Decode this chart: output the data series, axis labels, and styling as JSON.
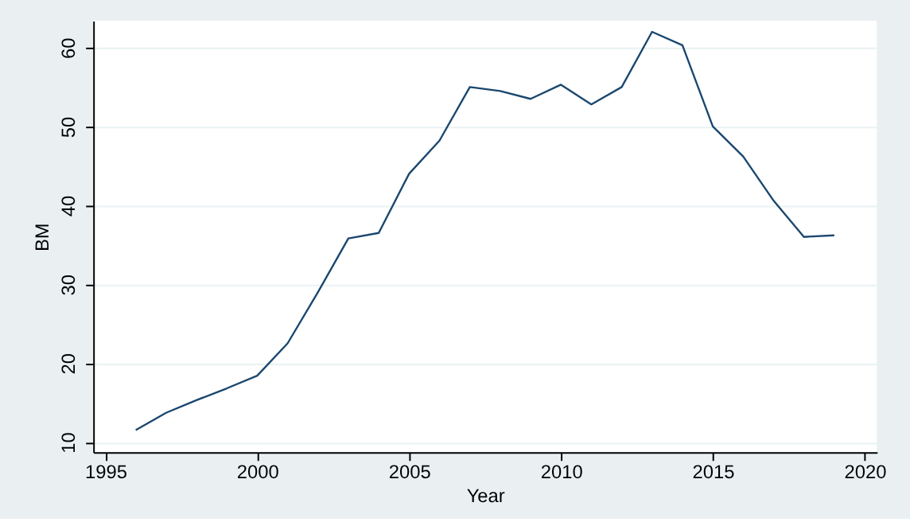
{
  "chart_data": {
    "type": "line",
    "xlabel": "Year",
    "ylabel": "BM",
    "x": [
      1996,
      1997,
      1998,
      1999,
      2000,
      2001,
      2002,
      2003,
      2004,
      2005,
      2006,
      2007,
      2008,
      2009,
      2010,
      2011,
      2012,
      2013,
      2014,
      2015,
      2016,
      2017,
      2018,
      2019
    ],
    "series": [
      {
        "color": "#1a476f",
        "values": [
          11.5,
          13.7,
          15.3,
          16.8,
          18.4,
          22.5,
          29,
          35.8,
          36.5,
          44,
          48.2,
          55,
          54.5,
          53.5,
          55.3,
          52.8,
          55,
          62,
          60.3,
          50,
          46.2,
          40.6,
          36,
          36.2
        ]
      }
    ],
    "xlim": [
      1994.6,
      2020.4
    ],
    "xticks": [
      1995,
      2000,
      2005,
      2010,
      2015,
      2020
    ],
    "ylim": [
      8.7,
      63.4
    ],
    "yticks": [
      10,
      20,
      30,
      40,
      50,
      60
    ],
    "grid": "y",
    "marker": "none",
    "line_style": "solid"
  }
}
